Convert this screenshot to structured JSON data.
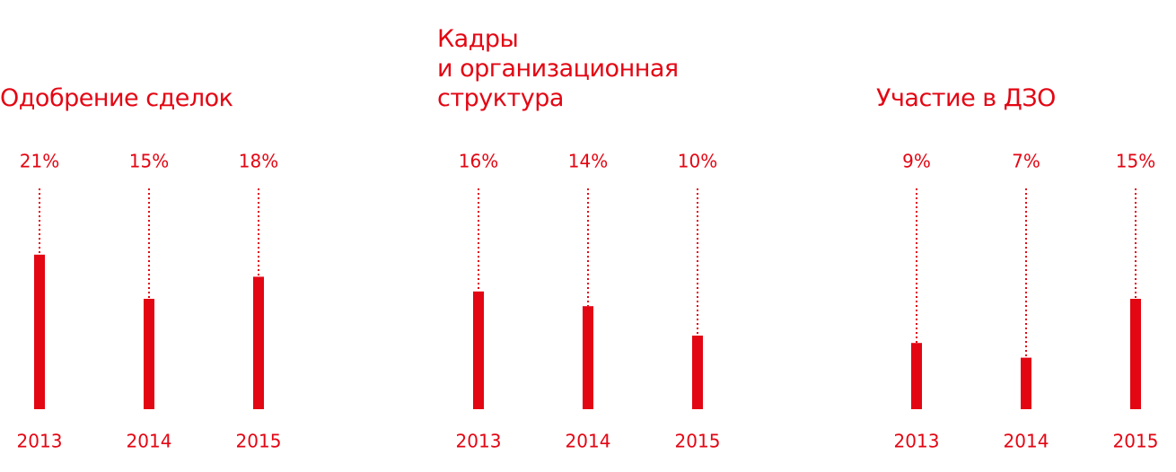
{
  "chart_data": [
    {
      "type": "bar",
      "title": "Одобрение сделок",
      "categories": [
        "2013",
        "2014",
        "2015"
      ],
      "values": [
        21,
        15,
        18
      ],
      "value_labels": [
        "21%",
        "15%",
        "18%"
      ],
      "color": "#e30613",
      "ylim": [
        0,
        30
      ]
    },
    {
      "type": "bar",
      "title": "Кадры\nи организационная\nструктура",
      "categories": [
        "2013",
        "2014",
        "2015"
      ],
      "values": [
        16,
        14,
        10
      ],
      "value_labels": [
        "16%",
        "14%",
        "10%"
      ],
      "color": "#e30613",
      "ylim": [
        0,
        30
      ]
    },
    {
      "type": "bar",
      "title": "Участие в ДЗО",
      "categories": [
        "2013",
        "2014",
        "2015"
      ],
      "values": [
        9,
        7,
        15
      ],
      "value_labels": [
        "9%",
        "7%",
        "15%"
      ],
      "color": "#e30613",
      "ylim": [
        0,
        30
      ]
    }
  ]
}
